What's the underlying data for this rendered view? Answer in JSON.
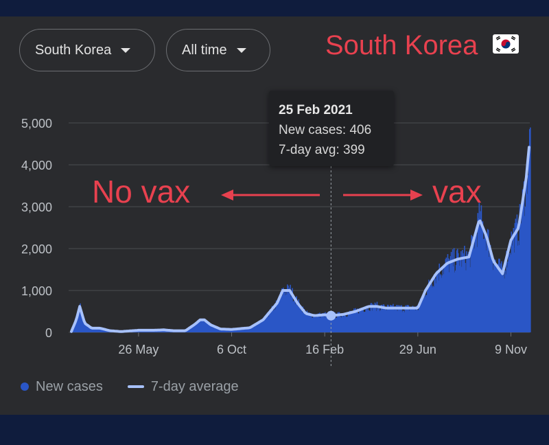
{
  "controls": {
    "country": "South Korea",
    "range": "All time"
  },
  "overlay": {
    "title": "South Korea",
    "flag_icon": "south-korea-flag-icon",
    "left_label": "No vax",
    "right_label": "vax"
  },
  "tooltip": {
    "date": "25 Feb 2021",
    "new_cases": "New cases: 406",
    "avg": "7-day avg: 399"
  },
  "legend": {
    "new_cases": "New cases",
    "avg": "7-day average"
  },
  "colors": {
    "bars": "#2a56c6",
    "avg_line": "#a7c1fb",
    "annotation": "#e8414f"
  },
  "chart_data": {
    "type": "area",
    "x_ticks": [
      "26 May",
      "6 Oct",
      "16 Feb",
      "29 Jun",
      "9 Nov"
    ],
    "y_ticks": [
      "0",
      "1,000",
      "2,000",
      "3,000",
      "4,000",
      "5,000"
    ],
    "ylim": [
      0,
      5900
    ],
    "grid": true,
    "legend_position": "bottom-left",
    "series": [
      {
        "name": "7-day average",
        "points": [
          [
            "20 Feb 2020",
            20
          ],
          [
            "27 Feb 2020",
            300
          ],
          [
            "3 Mar 2020",
            620
          ],
          [
            "10 Mar 2020",
            220
          ],
          [
            "20 Mar 2020",
            100
          ],
          [
            "1 Apr 2020",
            100
          ],
          [
            "15 Apr 2020",
            40
          ],
          [
            "1 May 2020",
            20
          ],
          [
            "26 May 2020",
            50
          ],
          [
            "15 Jun 2020",
            50
          ],
          [
            "1 Jul 2020",
            60
          ],
          [
            "15 Jul 2020",
            40
          ],
          [
            "1 Aug 2020",
            40
          ],
          [
            "15 Aug 2020",
            200
          ],
          [
            "22 Aug 2020",
            300
          ],
          [
            "28 Aug 2020",
            300
          ],
          [
            "6 Sep 2020",
            180
          ],
          [
            "20 Sep 2020",
            80
          ],
          [
            "6 Oct 2020",
            70
          ],
          [
            "1 Nov 2020",
            110
          ],
          [
            "20 Nov 2020",
            300
          ],
          [
            "10 Dec 2020",
            700
          ],
          [
            "18 Dec 2020",
            1000
          ],
          [
            "28 Dec 2020",
            1000
          ],
          [
            "8 Jan 2021",
            700
          ],
          [
            "20 Jan 2021",
            450
          ],
          [
            "1 Feb 2021",
            400
          ],
          [
            "16 Feb 2021",
            420
          ],
          [
            "25 Feb 2021",
            399
          ],
          [
            "15 Mar 2021",
            430
          ],
          [
            "1 Apr 2021",
            500
          ],
          [
            "20 Apr 2021",
            620
          ],
          [
            "1 May 2021",
            620
          ],
          [
            "15 May 2021",
            580
          ],
          [
            "29 Jun 2021",
            580
          ],
          [
            "10 Jul 2021",
            1000
          ],
          [
            "25 Jul 2021",
            1400
          ],
          [
            "10 Aug 2021",
            1650
          ],
          [
            "25 Aug 2021",
            1750
          ],
          [
            "10 Sep 2021",
            1800
          ],
          [
            "25 Sep 2021",
            2700
          ],
          [
            "5 Oct 2021",
            2300
          ],
          [
            "15 Oct 2021",
            1700
          ],
          [
            "28 Oct 2021",
            1400
          ],
          [
            "9 Nov 2021",
            2200
          ],
          [
            "20 Nov 2021",
            2500
          ],
          [
            "1 Dec 2021",
            3700
          ],
          [
            "6 Dec 2021",
            4600
          ]
        ]
      }
    ]
  }
}
